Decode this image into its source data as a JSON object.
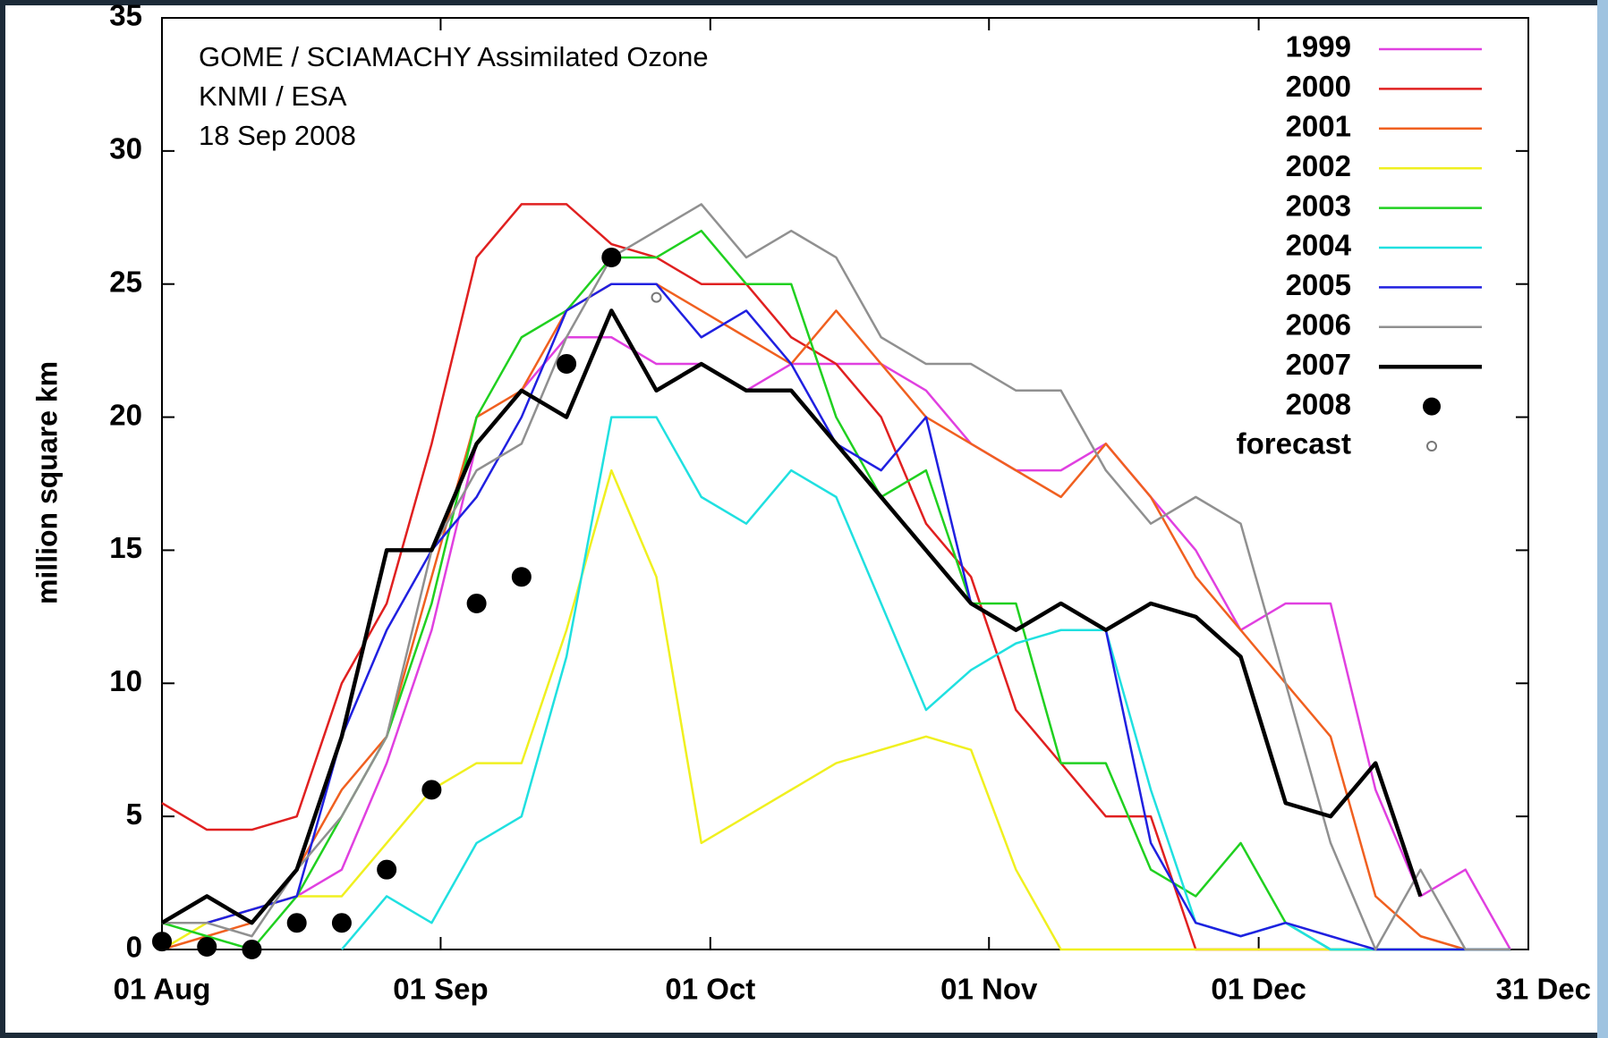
{
  "chart_data": {
    "type": "line",
    "ylabel": "million square km",
    "annotations": [
      "GOME / SCIAMACHY Assimilated Ozone",
      "KNMI / ESA",
      "18 Sep 2008"
    ],
    "x": [
      0,
      5,
      10,
      15,
      20,
      25,
      30,
      35,
      40,
      45,
      50,
      55,
      60,
      65,
      70,
      75,
      80,
      85,
      90,
      95,
      100,
      105,
      110,
      115,
      120,
      125,
      130,
      135,
      140,
      145,
      150
    ],
    "xlim": [
      0,
      152
    ],
    "xticks": [
      {
        "value": 0,
        "label": "01 Aug"
      },
      {
        "value": 31,
        "label": "01 Sep"
      },
      {
        "value": 61,
        "label": "01 Oct"
      },
      {
        "value": 92,
        "label": "01 Nov"
      },
      {
        "value": 122,
        "label": "01 Dec"
      },
      {
        "value": 152,
        "label": "31 Dec"
      }
    ],
    "ylim": [
      0,
      35
    ],
    "yticks": [
      0,
      5,
      10,
      15,
      20,
      25,
      30,
      35
    ],
    "grid": false,
    "legend": "upper right",
    "series": [
      {
        "name": "1999",
        "color": "#e040e0",
        "mode": "lines",
        "width": 2.5,
        "values": [
          1,
          1,
          1.5,
          2,
          3,
          7,
          12,
          19,
          21,
          23,
          23,
          22,
          22,
          21,
          22,
          22,
          22,
          21,
          19,
          18,
          18,
          19,
          17,
          15,
          12,
          13,
          13,
          6,
          2,
          3,
          0
        ]
      },
      {
        "name": "2000",
        "color": "#e02020",
        "mode": "lines",
        "width": 2.5,
        "values": [
          5.5,
          4.5,
          4.5,
          5,
          10,
          13,
          19,
          26,
          28,
          28,
          26.5,
          26,
          25,
          25,
          23,
          22,
          20,
          16,
          14,
          9,
          7,
          5,
          5,
          0,
          0,
          0,
          0,
          0,
          0,
          0,
          0
        ]
      },
      {
        "name": "2001",
        "color": "#f06020",
        "mode": "lines",
        "width": 2.5,
        "values": [
          0,
          0.5,
          1,
          3,
          6,
          8,
          14,
          20,
          21,
          24,
          25,
          25,
          24,
          23,
          22,
          24,
          22,
          20,
          19,
          18,
          17,
          19,
          17,
          14,
          12,
          10,
          8,
          2,
          0.5,
          0,
          0
        ]
      },
      {
        "name": "2002",
        "color": "#f0f020",
        "mode": "lines",
        "width": 2.5,
        "values": [
          0,
          1,
          1.5,
          2,
          2,
          4,
          6,
          7,
          7,
          12,
          18,
          14,
          4,
          5,
          6,
          7,
          7.5,
          8,
          7.5,
          3,
          0,
          0,
          0,
          0,
          0,
          0,
          0,
          0,
          0,
          0,
          0
        ]
      },
      {
        "name": "2003",
        "color": "#20d020",
        "mode": "lines",
        "width": 2.5,
        "values": [
          1,
          0.5,
          0,
          2,
          5,
          8,
          13,
          20,
          23,
          24,
          26,
          26,
          27,
          25,
          25,
          20,
          17,
          18,
          13,
          13,
          7,
          7,
          3,
          2,
          4,
          1,
          0,
          0,
          0,
          0,
          0
        ]
      },
      {
        "name": "2004",
        "color": "#20e0e0",
        "mode": "lines",
        "width": 2.5,
        "values": [
          null,
          null,
          null,
          null,
          0,
          2,
          1,
          4,
          5,
          11,
          20,
          20,
          17,
          16,
          18,
          17,
          13,
          9,
          10.5,
          11.5,
          12,
          12,
          6,
          1,
          0.5,
          1,
          0,
          0,
          0,
          0,
          0
        ]
      },
      {
        "name": "2005",
        "color": "#2020e0",
        "mode": "lines",
        "width": 2.5,
        "values": [
          1,
          1,
          1.5,
          2,
          8,
          12,
          15,
          17,
          20,
          24,
          25,
          25,
          23,
          24,
          22,
          19,
          18,
          20,
          13,
          12,
          13,
          12,
          4,
          1,
          0.5,
          1,
          0.5,
          0,
          0,
          0,
          0
        ]
      },
      {
        "name": "2006",
        "color": "#909090",
        "mode": "lines",
        "width": 2.5,
        "values": [
          1,
          1,
          0.5,
          3,
          5,
          8,
          15,
          18,
          19,
          23,
          26,
          27,
          28,
          26,
          27,
          26,
          23,
          22,
          22,
          21,
          21,
          18,
          16,
          17,
          16,
          10,
          4,
          0,
          3,
          0,
          0
        ]
      },
      {
        "name": "2007",
        "color": "#000000",
        "mode": "lines",
        "width": 4.5,
        "values": [
          1,
          2,
          1,
          3,
          8,
          15,
          15,
          19,
          21,
          20,
          24,
          21,
          22,
          21,
          21,
          19,
          17,
          15,
          13,
          12,
          13,
          12,
          13,
          12.5,
          11,
          5.5,
          5,
          7,
          2,
          null,
          null
        ]
      },
      {
        "name": "2008",
        "color": "#000000",
        "mode": "points",
        "values": [
          0.3,
          0.1,
          0,
          1,
          1,
          3,
          6,
          13,
          14,
          22,
          26,
          null,
          null,
          null,
          null,
          null,
          null,
          null,
          null,
          null,
          null,
          null,
          null,
          null,
          null,
          null,
          null,
          null,
          null,
          null,
          null
        ]
      },
      {
        "name": "forecast",
        "color": "#777777",
        "mode": "open-points",
        "values": [
          null,
          null,
          null,
          null,
          null,
          null,
          null,
          null,
          null,
          null,
          null,
          24.5,
          null,
          null,
          null,
          null,
          null,
          null,
          null,
          null,
          null,
          null,
          null,
          null,
          null,
          null,
          null,
          null,
          null,
          null,
          null
        ]
      }
    ]
  }
}
